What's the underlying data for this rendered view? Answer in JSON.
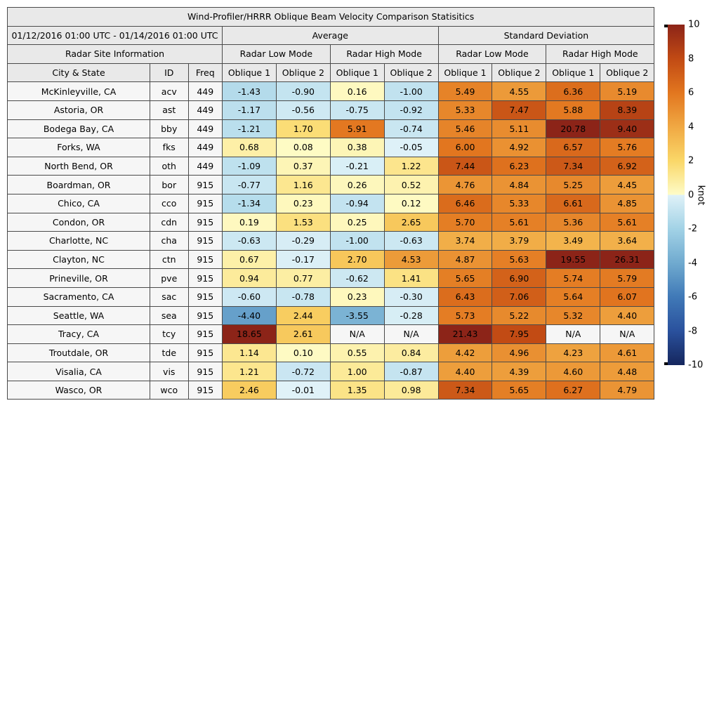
{
  "header": {
    "period": "01/12/2016 01:00 UTC - 01/14/2016 01:00 UTC",
    "average_label": "Average",
    "std_dev_label": "Standard Deviation",
    "site_info_label": "Radar Site Information",
    "mode_labels": [
      "Radar Low Mode",
      "Radar High Mode",
      "Radar Low Mode",
      "Radar High Mode"
    ],
    "column_labels": [
      "City & State",
      "ID",
      "Freq",
      "Oblique 1",
      "Oblique 2",
      "Oblique 1",
      "Oblique 2",
      "Oblique 1",
      "Oblique 2",
      "Oblique 1",
      "Oblique 2"
    ]
  },
  "colorbar": {
    "label": "knot",
    "ticks": [
      "10",
      "8",
      "6",
      "4",
      "2",
      "0",
      "-2",
      "-4",
      "-6",
      "-8",
      "-10"
    ],
    "vmin": -10,
    "vmax": 10,
    "neutral_color": "#f6f6f6",
    "warm_anchors": [
      [
        0,
        "#fefcc8"
      ],
      [
        2,
        "#fad768"
      ],
      [
        4,
        "#f0a843"
      ],
      [
        6,
        "#e2761f"
      ],
      [
        8,
        "#c14a14"
      ],
      [
        10,
        "#8c2418"
      ]
    ],
    "cool_anchors": [
      [
        0,
        "#e0f2f8"
      ],
      [
        2,
        "#a2d2e6"
      ],
      [
        4,
        "#70aacf"
      ],
      [
        6,
        "#4079b7"
      ],
      [
        8,
        "#2a519d"
      ],
      [
        10,
        "#15265d"
      ]
    ]
  },
  "chart_data": {
    "type": "heatmap",
    "title": "Wind-Profiler/HRRR Oblique Beam Velocity Comparison Statisitics",
    "colorbar_label": "knot",
    "color_range": [
      -10,
      10
    ],
    "value_columns": [
      "Average Radar Low Mode Oblique 1",
      "Average Radar Low Mode Oblique 2",
      "Average Radar High Mode Oblique 1",
      "Average Radar High Mode Oblique 2",
      "Std Dev Radar Low Mode Oblique 1",
      "Std Dev Radar Low Mode Oblique 2",
      "Std Dev Radar High Mode Oblique 1",
      "Std Dev Radar High Mode Oblique 2"
    ],
    "rows": [
      {
        "city": "McKinleyville, CA",
        "id": "acv",
        "freq": "449",
        "values": [
          "-1.43",
          "-0.90",
          "0.16",
          "-1.00",
          "5.49",
          "4.55",
          "6.36",
          "5.19"
        ]
      },
      {
        "city": "Astoria, OR",
        "id": "ast",
        "freq": "449",
        "values": [
          "-1.17",
          "-0.56",
          "-0.75",
          "-0.92",
          "5.33",
          "7.47",
          "5.88",
          "8.39"
        ]
      },
      {
        "city": "Bodega Bay, CA",
        "id": "bby",
        "freq": "449",
        "values": [
          "-1.21",
          "1.70",
          "5.91",
          "-0.74",
          "5.46",
          "5.11",
          "20.78",
          "9.40"
        ]
      },
      {
        "city": "Forks, WA",
        "id": "fks",
        "freq": "449",
        "values": [
          "0.68",
          "0.08",
          "0.38",
          "-0.05",
          "6.00",
          "4.92",
          "6.57",
          "5.76"
        ]
      },
      {
        "city": "North Bend, OR",
        "id": "oth",
        "freq": "449",
        "values": [
          "-1.09",
          "0.37",
          "-0.21",
          "1.22",
          "7.44",
          "6.23",
          "7.34",
          "6.92"
        ]
      },
      {
        "city": "Boardman, OR",
        "id": "bor",
        "freq": "915",
        "values": [
          "-0.77",
          "1.16",
          "0.26",
          "0.52",
          "4.76",
          "4.84",
          "5.25",
          "4.45"
        ]
      },
      {
        "city": "Chico, CA",
        "id": "cco",
        "freq": "915",
        "values": [
          "-1.34",
          "0.23",
          "-0.94",
          "0.12",
          "6.46",
          "5.33",
          "6.61",
          "4.85"
        ]
      },
      {
        "city": "Condon, OR",
        "id": "cdn",
        "freq": "915",
        "values": [
          "0.19",
          "1.53",
          "0.25",
          "2.65",
          "5.70",
          "5.61",
          "5.36",
          "5.61"
        ]
      },
      {
        "city": "Charlotte, NC",
        "id": "cha",
        "freq": "915",
        "values": [
          "-0.63",
          "-0.29",
          "-1.00",
          "-0.63",
          "3.74",
          "3.79",
          "3.49",
          "3.64"
        ]
      },
      {
        "city": "Clayton, NC",
        "id": "ctn",
        "freq": "915",
        "values": [
          "0.67",
          "-0.17",
          "2.70",
          "4.53",
          "4.87",
          "5.63",
          "19.55",
          "26.31"
        ]
      },
      {
        "city": "Prineville, OR",
        "id": "pve",
        "freq": "915",
        "values": [
          "0.94",
          "0.77",
          "-0.62",
          "1.41",
          "5.65",
          "6.90",
          "5.74",
          "5.79"
        ]
      },
      {
        "city": "Sacramento, CA",
        "id": "sac",
        "freq": "915",
        "values": [
          "-0.60",
          "-0.78",
          "0.23",
          "-0.30",
          "6.43",
          "7.06",
          "5.64",
          "6.07"
        ]
      },
      {
        "city": "Seattle, WA",
        "id": "sea",
        "freq": "915",
        "values": [
          "-4.40",
          "2.44",
          "-3.55",
          "-0.28",
          "5.73",
          "5.22",
          "5.32",
          "4.40"
        ]
      },
      {
        "city": "Tracy, CA",
        "id": "tcy",
        "freq": "915",
        "values": [
          "18.65",
          "2.61",
          "N/A",
          "N/A",
          "21.43",
          "7.95",
          "N/A",
          "N/A"
        ]
      },
      {
        "city": "Troutdale, OR",
        "id": "tde",
        "freq": "915",
        "values": [
          "1.14",
          "0.10",
          "0.55",
          "0.84",
          "4.42",
          "4.96",
          "4.23",
          "4.61"
        ]
      },
      {
        "city": "Visalia, CA",
        "id": "vis",
        "freq": "915",
        "values": [
          "1.21",
          "-0.72",
          "1.00",
          "-0.87",
          "4.40",
          "4.39",
          "4.60",
          "4.48"
        ]
      },
      {
        "city": "Wasco, OR",
        "id": "wco",
        "freq": "915",
        "values": [
          "2.46",
          "-0.01",
          "1.35",
          "0.98",
          "7.34",
          "5.65",
          "6.27",
          "4.79"
        ]
      }
    ]
  }
}
